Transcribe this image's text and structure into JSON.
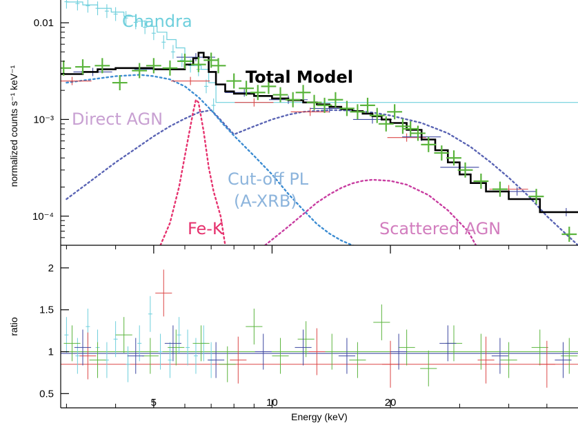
{
  "chart_data": [
    {
      "type": "line",
      "panel": "spectrum",
      "xscale": "log",
      "yscale": "log",
      "xlim": [
        2.9,
        60
      ],
      "ylim": [
        5e-05,
        0.0172
      ],
      "ylabel": "normalized counts s⁻¹ keV⁻¹",
      "y_ticks": [
        {
          "value": 0.01,
          "label": "0.01"
        },
        {
          "value": 0.001,
          "label": "10⁻³"
        },
        {
          "value": 0.0001,
          "label": "10⁻⁴"
        }
      ],
      "annotations": {
        "chandra": "Chandra",
        "total_model": "Total Model",
        "direct_agn": "Direct AGN",
        "cutoff_pl": "Cut-off PL",
        "a_xrb": "(A-XRB)",
        "fe_k": "Fe-K",
        "scattered_agn": "Scattered AGN"
      },
      "colors": {
        "chandra": "#6ecfdc",
        "total_model": "#000000",
        "direct_agn": "#5a64b4",
        "direct_agn_label": "#c8a0d2",
        "cutoff_pl": "#3c8cd2",
        "cutoff_pl_label": "#8cb4dc",
        "fe_k": "#e6326e",
        "scattered_agn": "#c83ca0",
        "scattered_label": "#d27dbe",
        "nustar_green": "#5ab43c",
        "nustar_red": "#dc4646",
        "nustar_blue": "#3c46a0"
      },
      "series": [
        {
          "label": "Chandra",
          "style": "points",
          "x": [
            3.0,
            3.2,
            3.4,
            3.6,
            3.8,
            4.0,
            4.25,
            4.5,
            4.75,
            5.0,
            5.3,
            5.6,
            5.9,
            6.2,
            6.5,
            6.8,
            7.1
          ],
          "y": [
            0.0165,
            0.0158,
            0.015,
            0.0141,
            0.0132,
            0.0123,
            0.0112,
            0.0101,
            0.009,
            0.0078,
            0.0063,
            0.005,
            0.0041,
            0.0036,
            0.0033,
            0.0022,
            0.0014
          ]
        },
        {
          "label": "Chandra model",
          "style": "step",
          "x": [
            3.0,
            3.3,
            3.6,
            3.9,
            4.2,
            4.5,
            4.8,
            5.1,
            5.4,
            5.7,
            6.0,
            6.3,
            6.6,
            6.9,
            7.2
          ],
          "y": [
            0.0164,
            0.0153,
            0.0141,
            0.0129,
            0.0117,
            0.0104,
            0.0092,
            0.008,
            0.0067,
            0.0055,
            0.0044,
            0.0036,
            0.0033,
            0.0024,
            0.0015
          ]
        },
        {
          "label": "Total Model",
          "style": "step",
          "x": [
            2.9,
            3.3,
            3.6,
            4.0,
            4.5,
            5.0,
            5.6,
            6.0,
            6.3,
            6.5,
            6.7,
            6.9,
            7.2,
            7.6,
            8.0,
            9.0,
            10.0,
            11.0,
            12.0,
            13.0,
            14.0,
            15.0,
            16.0,
            17.0,
            18.0,
            19.0,
            20.0,
            22.0,
            24.0,
            26.0,
            28.0,
            30.0,
            32.0,
            35.0,
            40.0,
            48.0,
            60.0
          ],
          "y": [
            0.00295,
            0.0031,
            0.0033,
            0.0034,
            0.0034,
            0.0033,
            0.0033,
            0.0037,
            0.0043,
            0.0049,
            0.0044,
            0.0031,
            0.0023,
            0.00195,
            0.00185,
            0.00175,
            0.00165,
            0.00158,
            0.0015,
            0.00143,
            0.00135,
            0.00128,
            0.00122,
            0.00115,
            0.00108,
            0.001,
            0.00092,
            0.00078,
            0.00062,
            0.00048,
            0.00036,
            0.00027,
            0.00022,
            0.00018,
            0.00015,
            0.00011,
            0.00011
          ]
        },
        {
          "label": "Direct AGN",
          "style": "dotted",
          "x": [
            3.0,
            3.5,
            4.0,
            4.5,
            5.0,
            5.5,
            6.0,
            6.5,
            7.0,
            7.3,
            8.0,
            9.0,
            10.0,
            11.0,
            12.0,
            14.0,
            16.0,
            18.0,
            20.0,
            24.0,
            28.0,
            32.0,
            36.0,
            40.0,
            45.0,
            50.0,
            60.0
          ],
          "y": [
            0.00015,
            0.00024,
            0.00036,
            0.0005,
            0.00067,
            0.00085,
            0.00102,
            0.00118,
            0.00125,
            0.00105,
            0.0007,
            0.00085,
            0.001,
            0.00112,
            0.0012,
            0.00125,
            0.00124,
            0.00118,
            0.0011,
            0.00092,
            0.00072,
            0.00052,
            0.00036,
            0.00025,
            0.00016,
            0.0001,
            5e-05
          ]
        },
        {
          "label": "Cut-off PL (A-XRB)",
          "style": "dotted",
          "x": [
            3.0,
            4.0,
            4.6,
            5.0,
            5.5,
            6.0,
            6.5,
            7.0,
            7.5,
            8.0,
            9.0,
            10.0,
            11.0,
            12.0,
            13.0,
            14.0,
            15.0,
            16.0,
            17.0,
            18.0,
            20.0
          ],
          "y": [
            0.0024,
            0.0028,
            0.0029,
            0.0028,
            0.0026,
            0.0022,
            0.0017,
            0.00125,
            0.0009,
            0.00068,
            0.00042,
            0.00027,
            0.00017,
            0.000116,
            8.3e-05,
            6.6e-05,
            5.6e-05,
            5e-05,
            4.6e-05,
            4.4e-05,
            4.2e-05
          ]
        },
        {
          "label": "Fe-K",
          "style": "dotted",
          "x": [
            5.2,
            5.5,
            5.8,
            6.1,
            6.3,
            6.4,
            6.5,
            6.7,
            6.9,
            7.1,
            7.4,
            7.6
          ],
          "y": [
            5e-05,
            8.5e-05,
            0.0002,
            0.0006,
            0.0012,
            0.0016,
            0.0015,
            0.00075,
            0.00032,
            0.00018,
            0.0001,
            5e-05
          ]
        },
        {
          "label": "Scattered AGN",
          "style": "dotted",
          "x": [
            9.6,
            11.0,
            12.0,
            13.0,
            14.0,
            15.0,
            16.0,
            17.0,
            18.0,
            20.0,
            22.0,
            25.0,
            28.0,
            31.5,
            33.0
          ],
          "y": [
            5e-05,
            7.8e-05,
            0.000105,
            0.000138,
            0.000168,
            0.000196,
            0.000218,
            0.000232,
            0.000238,
            0.000232,
            0.000212,
            0.000165,
            0.000115,
            7e-05,
            5e-05
          ]
        },
        {
          "label": "NuSTAR (green)",
          "style": "crosses",
          "x": [
            2.95,
            3.3,
            3.7,
            4.1,
            4.6,
            5.0,
            5.5,
            6.0,
            6.5,
            7.0,
            7.3,
            8.0,
            8.6,
            9.2,
            9.8,
            10.5,
            11.3,
            12.0,
            12.8,
            13.6,
            14.5,
            15.5,
            16.5,
            17.5,
            18.5,
            19.5,
            20.5,
            21.5,
            22.5,
            23.5,
            25.0,
            27.0,
            29.0,
            31.0,
            34.0,
            38.0,
            47.0,
            57.0
          ],
          "y": [
            0.0034,
            0.0035,
            0.0036,
            0.0024,
            0.0032,
            0.0036,
            0.0034,
            0.004,
            0.0037,
            0.0041,
            0.0036,
            0.0025,
            0.0021,
            0.0019,
            0.0022,
            0.0018,
            0.0016,
            0.0019,
            0.0015,
            0.0014,
            0.0016,
            0.0013,
            0.0012,
            0.0014,
            0.0011,
            0.0009,
            0.0012,
            0.00085,
            0.0008,
            0.00072,
            0.00055,
            0.00045,
            0.0004,
            0.0003,
            0.00023,
            0.00019,
            0.00016,
            6.5e-05
          ]
        },
        {
          "label": "NuSTAR (red)",
          "style": "crosses",
          "x": [
            3.1,
            6.2,
            9.0,
            12.5,
            22.0,
            40.0
          ],
          "y": [
            0.0025,
            0.0025,
            0.0015,
            0.0012,
            0.00065,
            0.00019
          ]
        },
        {
          "label": "NuSTAR (blue)",
          "style": "crosses",
          "x": [
            3.5,
            5.0,
            6.4,
            8.5,
            11.0,
            14.0,
            18.0,
            24.0,
            30.0,
            42.0,
            56.0
          ],
          "y": [
            0.0031,
            0.0033,
            0.0044,
            0.0019,
            0.0016,
            0.0013,
            0.001,
            0.00066,
            0.00032,
            0.00018,
            0.00011
          ]
        }
      ]
    },
    {
      "type": "scatter",
      "panel": "ratio",
      "xscale": "log",
      "yscale": "linear",
      "xlim": [
        2.9,
        60
      ],
      "ylim": [
        0.33,
        2.27
      ],
      "xlabel": "Energy (keV)",
      "ylabel": "ratio",
      "x_ticks": [
        {
          "value": 5,
          "label": "5"
        },
        {
          "value": 10,
          "label": "10"
        },
        {
          "value": 20,
          "label": "20"
        }
      ],
      "y_ticks": [
        {
          "value": 0.5,
          "label": "0.5"
        },
        {
          "value": 1,
          "label": "1"
        },
        {
          "value": 1.5,
          "label": "1.5"
        },
        {
          "value": 2,
          "label": "2"
        }
      ],
      "reference_lines": [
        {
          "label": "model (blue)",
          "x": [
            2.9,
            60
          ],
          "y": [
            0.98,
            0.98
          ]
        },
        {
          "label": "model (red)",
          "x": [
            2.9,
            60
          ],
          "y": [
            0.85,
            0.85
          ]
        },
        {
          "label": "model (green)",
          "x": [
            2.9,
            60
          ],
          "y": [
            1.0,
            1.0
          ]
        }
      ],
      "series": [
        {
          "label": "Chandra",
          "x": [
            3.0,
            3.2,
            3.4,
            3.6,
            3.8,
            4.0,
            4.3,
            4.6,
            4.9,
            5.2,
            5.5,
            5.8,
            6.1,
            6.4,
            6.7,
            7.0
          ],
          "y": [
            1.2,
            0.95,
            1.3,
            1.05,
            0.9,
            1.15,
            0.85,
            1.1,
            1.45,
            1.0,
            0.9,
            1.2,
            1.05,
            0.95,
            1.1,
            0.9
          ]
        },
        {
          "label": "NuSTAR (green)",
          "x": [
            3.1,
            3.6,
            4.2,
            4.9,
            5.7,
            6.6,
            7.7,
            9.0,
            10.5,
            12.2,
            14.2,
            16.5,
            19.0,
            22.0,
            25.0,
            29.0,
            34.0,
            40.0,
            48.0,
            57.0
          ],
          "y": [
            1.1,
            0.9,
            1.2,
            0.95,
            1.05,
            1.1,
            0.85,
            1.3,
            0.95,
            1.15,
            1.0,
            0.9,
            1.35,
            1.05,
            0.8,
            1.1,
            1.0,
            0.9,
            1.05,
            0.95
          ]
        },
        {
          "label": "NuSTAR (red)",
          "x": [
            3.4,
            5.3,
            8.2,
            13.0,
            20.0,
            35.0,
            50.0
          ],
          "y": [
            0.95,
            1.7,
            0.9,
            1.0,
            0.85,
            0.9,
            0.85
          ]
        },
        {
          "label": "NuSTAR (blue)",
          "x": [
            3.3,
            4.5,
            5.6,
            7.2,
            9.5,
            12.0,
            15.5,
            21.0,
            28.0,
            38.0,
            55.0
          ],
          "y": [
            1.05,
            0.95,
            1.1,
            0.9,
            1.0,
            1.05,
            0.95,
            1.0,
            1.1,
            0.95,
            0.9
          ]
        }
      ]
    }
  ]
}
